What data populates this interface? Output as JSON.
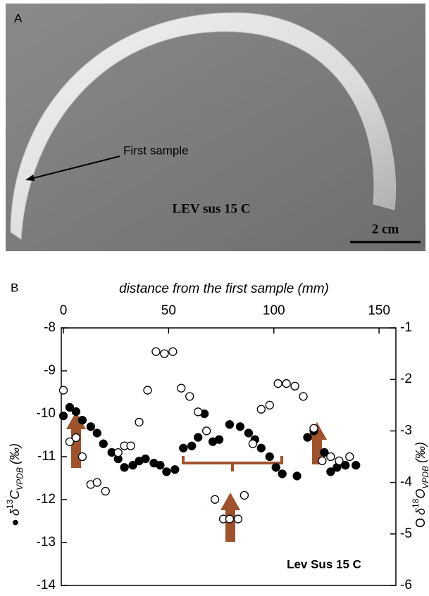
{
  "panel_a": {
    "label": "A",
    "annotation": "First sample",
    "specimen": "LEV sus 15 C",
    "scale_bar": "2 cm"
  },
  "chart_data": {
    "type": "line",
    "panel_label": "B",
    "annotation": "Lev Sus 15 C",
    "xlabel": "distance from the first sample (mm)",
    "ylabel": {
      "marker": "●",
      "symbol": "δ",
      "isotope": "13",
      "element": "C",
      "standard": "VPDB",
      "unit": "(‰)"
    },
    "y2label": {
      "marker": "O",
      "symbol": "δ",
      "isotope": "18",
      "element": "O",
      "standard": "VPDB",
      "unit": "(‰)"
    },
    "xlim": [
      -1,
      158
    ],
    "xticks": [
      0,
      50,
      100,
      150
    ],
    "ylim": [
      -14,
      -8
    ],
    "yticks": [
      -14,
      -13,
      -12,
      -11,
      -10,
      -9,
      -8
    ],
    "y2lim": [
      -6,
      -1
    ],
    "y2ticks": [
      -6,
      -5,
      -4,
      -3,
      -2,
      -1
    ],
    "series": [
      {
        "color": "#000000",
        "marker_fill": "#000000",
        "x": [
          0,
          3,
          6,
          9,
          13,
          16,
          19,
          23,
          26,
          29,
          33,
          36,
          39,
          43,
          46,
          49,
          53,
          57,
          61,
          64,
          67,
          71,
          74,
          79,
          84,
          88,
          91,
          94,
          98,
          101,
          104,
          111,
          116,
          119,
          124,
          127,
          130,
          134,
          139
        ],
        "values": [
          -10.05,
          -9.85,
          -9.95,
          -10.15,
          -10.3,
          -10.45,
          -10.7,
          -10.9,
          -11.05,
          -11.25,
          -11.2,
          -11.1,
          -11.05,
          -11.15,
          -11.2,
          -11.35,
          -11.3,
          -10.8,
          -10.75,
          -10.55,
          -10.0,
          -10.65,
          -10.6,
          -10.25,
          -10.3,
          -10.45,
          -10.6,
          -10.8,
          -11.0,
          -11.25,
          -11.4,
          -11.45,
          -10.55,
          -10.4,
          -10.9,
          -11.35,
          -11.25,
          -11.2,
          -11.2
        ]
      },
      {
        "color": "#000000",
        "marker_fill": "#ffffff",
        "axis": "y2",
        "x": [
          0,
          3,
          6,
          9,
          13,
          16,
          20,
          26,
          29,
          32,
          36,
          40,
          44,
          48,
          52,
          56,
          60,
          64,
          68,
          72,
          76,
          79,
          83,
          86,
          90,
          94,
          98,
          102,
          106,
          110,
          114,
          119,
          123,
          127,
          131,
          136
        ],
        "values": [
          -2.21,
          -3.21,
          -3.13,
          -3.5,
          -4.04,
          -4.0,
          -4.17,
          -3.42,
          -3.29,
          -3.29,
          -2.83,
          -2.21,
          -1.46,
          -1.5,
          -1.46,
          -2.17,
          -2.33,
          -2.63,
          -3.0,
          -4.33,
          -4.71,
          -4.71,
          -4.71,
          -4.25,
          -3.25,
          -2.58,
          -2.5,
          -2.08,
          -2.08,
          -2.13,
          -2.33,
          -2.95,
          -3.58,
          -3.5,
          -3.58,
          -3.5
        ]
      }
    ]
  }
}
